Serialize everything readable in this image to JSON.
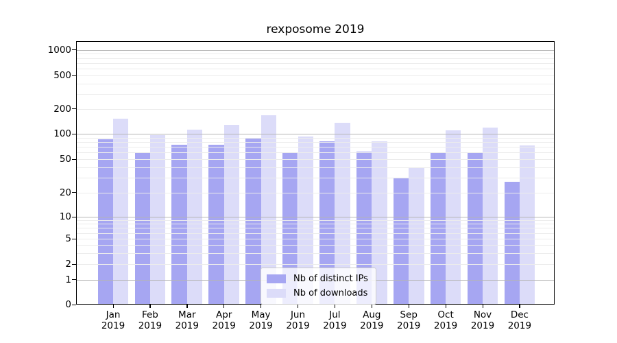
{
  "chart_data": {
    "type": "bar",
    "title": "rexposome 2019",
    "x_categories": [
      "Jan",
      "Feb",
      "Mar",
      "Apr",
      "May",
      "Jun",
      "Jul",
      "Aug",
      "Sep",
      "Oct",
      "Nov",
      "Dec"
    ],
    "x_year": "2019",
    "series": [
      {
        "name": "Nb of distinct IPs",
        "color": "#a6a6f2",
        "values": [
          86,
          60,
          74,
          75,
          90,
          60,
          82,
          62,
          30,
          60,
          60,
          27
        ]
      },
      {
        "name": "Nb of downloads",
        "color": "#dcdcf9",
        "values": [
          152,
          96,
          112,
          129,
          168,
          94,
          137,
          82,
          39,
          110,
          120,
          73
        ]
      }
    ],
    "y_axis": {
      "tick_labels": [
        0,
        1,
        2,
        5,
        10,
        20,
        50,
        100,
        200,
        500,
        1000
      ],
      "range": [
        0,
        1000
      ],
      "scale": "log-like"
    },
    "grid": true,
    "legend_position": "lower center"
  }
}
